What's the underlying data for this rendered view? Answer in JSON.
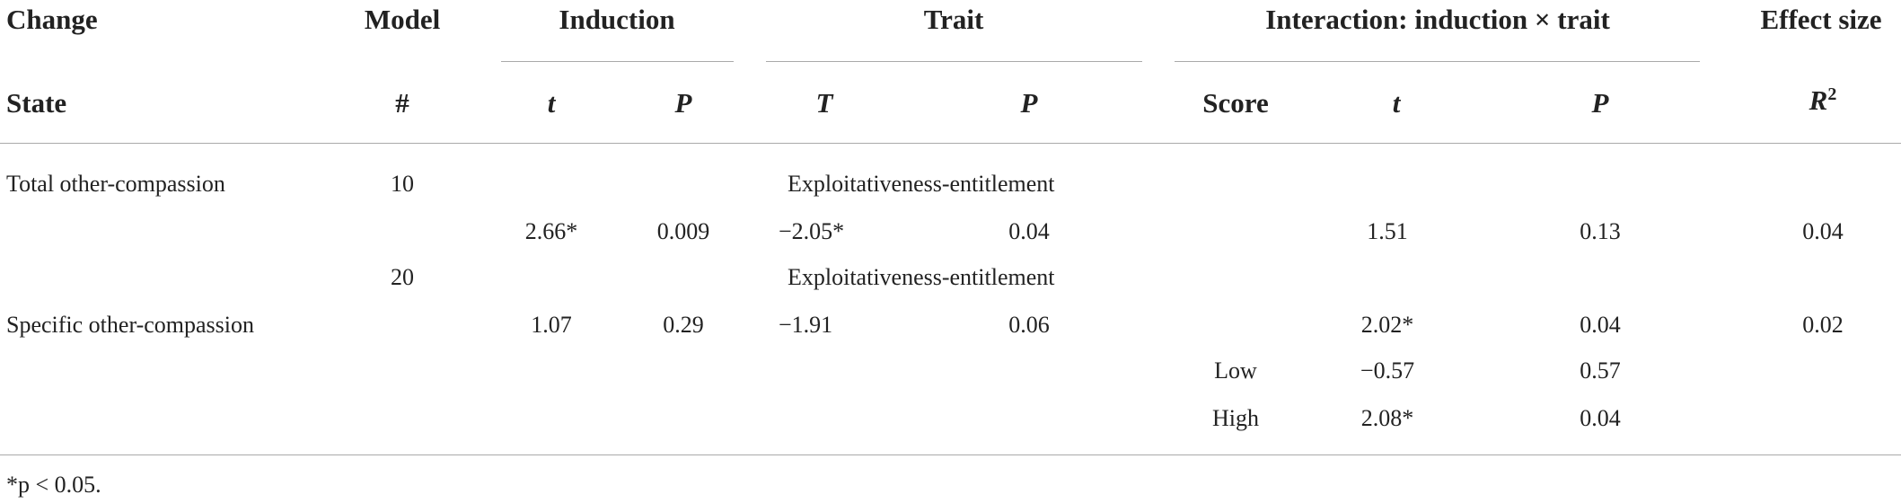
{
  "header": {
    "row1": {
      "change": "Change",
      "model": "Model",
      "induction": "Induction",
      "trait": "Trait",
      "interaction": "Interaction: induction × trait",
      "effect_size": "Effect size"
    },
    "row2": {
      "state": "State",
      "model": "#",
      "induction_t": "t",
      "induction_p": "P",
      "trait_t": "T",
      "trait_p": "P",
      "score": "Score",
      "interaction_t": "t",
      "interaction_p": "P",
      "r2": {
        "text": "R",
        "sup": "2"
      }
    }
  },
  "table": {
    "rows": [
      {
        "state": "Total other-compassion",
        "model": "10",
        "trait": "Exploitativeness-entitlement"
      },
      {
        "induction_t": "2.66*",
        "induction_p": "0.009",
        "trait_t": "−2.05*",
        "trait_p": "0.04",
        "interaction_t": "1.51",
        "interaction_p": "0.13",
        "r2": "0.04"
      },
      {
        "model": "20",
        "trait": "Exploitativeness-entitlement"
      },
      {
        "state": "Specific other-compassion",
        "induction_t": "1.07",
        "induction_p": "0.29",
        "trait_t": "−1.91",
        "trait_p": "0.06",
        "interaction_t": "2.02*",
        "interaction_p": "0.04",
        "r2": "0.02"
      },
      {
        "score": "Low",
        "interaction_t": "−0.57",
        "interaction_p": "0.57"
      },
      {
        "score": "High",
        "interaction_t": "2.08*",
        "interaction_p": "0.04"
      }
    ]
  },
  "footnote": "*p < 0.05."
}
